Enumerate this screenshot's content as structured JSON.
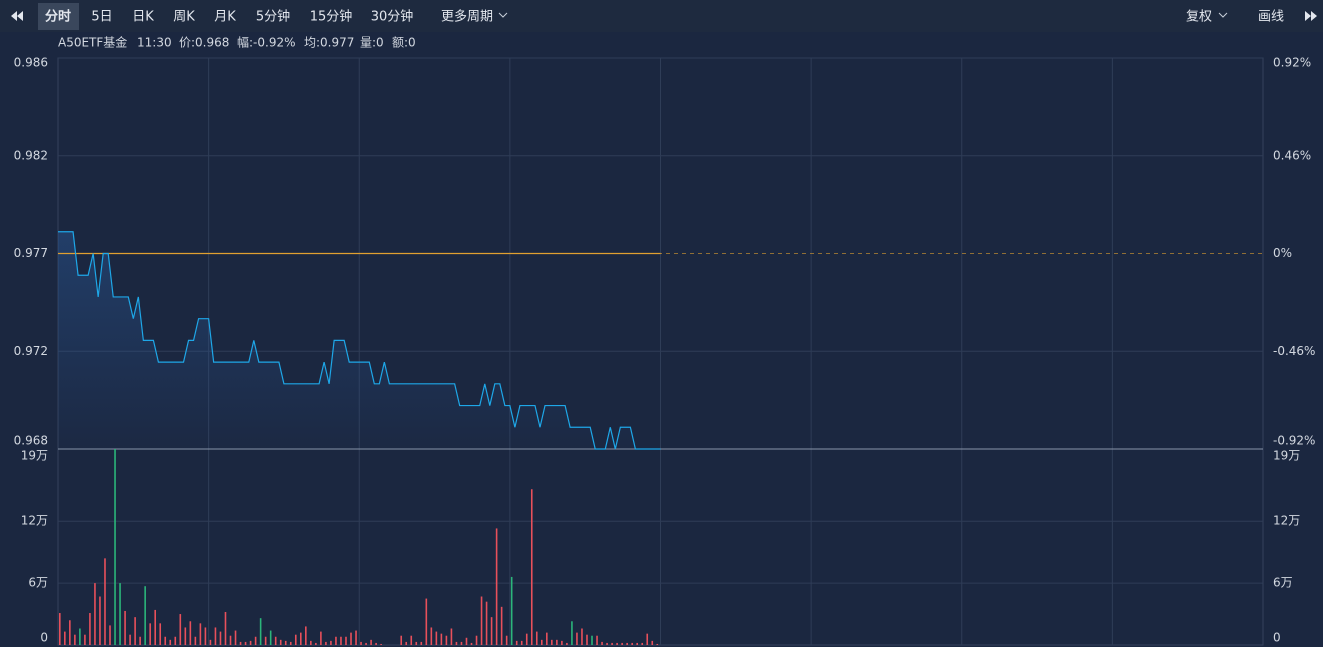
{
  "toolbar": {
    "tabs": [
      "分时",
      "5日",
      "日K",
      "周K",
      "月K",
      "5分钟",
      "15分钟",
      "30分钟",
      "更多周期"
    ],
    "right": [
      "复权",
      "画线"
    ]
  },
  "info": {
    "name": "A50ETF基金",
    "time": "11:30",
    "price": "价:0.968",
    "change": "幅:-0.92%",
    "avg": "均:0.977",
    "volume": "量:0",
    "amount": "额:0"
  },
  "chart_data": {
    "type": "line",
    "price_color": "#1ea7e8",
    "avg_color": "#e0a030",
    "up_color": "#e8505b",
    "down_color": "#2bb57a",
    "ylim": [
      0.968,
      0.986
    ],
    "yticks": [
      {
        "value": 0.986,
        "label": "0.986"
      },
      {
        "value": 0.9815,
        "label": "0.982"
      },
      {
        "value": 0.977,
        "label": "0.977"
      },
      {
        "value": 0.9725,
        "label": "0.972"
      },
      {
        "value": 0.968,
        "label": "0.968"
      }
    ],
    "y2lim": [
      -0.92,
      0.92
    ],
    "y2ticks": [
      {
        "value": 0.92,
        "label": "0.92%"
      },
      {
        "value": 0.46,
        "label": "0.46%"
      },
      {
        "value": 0,
        "label": "0%"
      },
      {
        "value": -0.46,
        "label": "-0.46%"
      },
      {
        "value": -0.92,
        "label": "-0.92%"
      }
    ],
    "price": [
      0.978,
      0.978,
      0.978,
      0.978,
      0.976,
      0.976,
      0.976,
      0.977,
      0.975,
      0.977,
      0.977,
      0.975,
      0.975,
      0.975,
      0.975,
      0.974,
      0.975,
      0.973,
      0.973,
      0.973,
      0.972,
      0.972,
      0.972,
      0.972,
      0.972,
      0.972,
      0.973,
      0.973,
      0.974,
      0.974,
      0.974,
      0.972,
      0.972,
      0.972,
      0.972,
      0.972,
      0.972,
      0.972,
      0.972,
      0.973,
      0.972,
      0.972,
      0.972,
      0.972,
      0.972,
      0.971,
      0.971,
      0.971,
      0.971,
      0.971,
      0.971,
      0.971,
      0.971,
      0.972,
      0.971,
      0.973,
      0.973,
      0.973,
      0.972,
      0.972,
      0.972,
      0.972,
      0.972,
      0.971,
      0.971,
      0.972,
      0.971,
      0.971,
      0.971,
      0.971,
      0.971,
      0.971,
      0.971,
      0.971,
      0.971,
      0.971,
      0.971,
      0.971,
      0.971,
      0.971,
      0.97,
      0.97,
      0.97,
      0.97,
      0.97,
      0.971,
      0.97,
      0.971,
      0.971,
      0.97,
      0.97,
      0.969,
      0.97,
      0.97,
      0.97,
      0.97,
      0.969,
      0.97,
      0.97,
      0.97,
      0.97,
      0.97,
      0.969,
      0.969,
      0.969,
      0.969,
      0.969,
      0.968,
      0.968,
      0.968,
      0.969,
      0.968,
      0.969,
      0.969,
      0.969,
      0.968,
      0.968,
      0.968,
      0.968,
      0.968,
      0.968
    ],
    "avg": [
      0.977,
      0.977,
      0.977,
      0.977,
      0.977,
      0.977,
      0.977,
      0.977,
      0.977,
      0.977,
      0.977,
      0.977,
      0.977,
      0.977,
      0.977,
      0.977,
      0.977,
      0.977,
      0.977,
      0.977,
      0.977,
      0.977,
      0.977,
      0.977,
      0.977,
      0.977,
      0.977,
      0.977,
      0.977,
      0.977,
      0.977,
      0.977,
      0.977,
      0.977,
      0.977,
      0.977,
      0.977,
      0.977,
      0.977,
      0.977,
      0.977,
      0.977,
      0.977,
      0.977,
      0.977,
      0.977,
      0.977,
      0.977,
      0.977,
      0.977,
      0.977,
      0.977,
      0.977,
      0.977,
      0.977,
      0.977,
      0.977,
      0.977,
      0.977,
      0.977,
      0.977,
      0.977,
      0.977,
      0.977,
      0.977,
      0.977,
      0.977,
      0.977,
      0.977,
      0.977,
      0.977,
      0.977,
      0.977,
      0.977,
      0.977,
      0.977,
      0.977,
      0.977,
      0.977,
      0.977,
      0.977,
      0.977,
      0.977,
      0.977,
      0.977,
      0.977,
      0.977,
      0.977,
      0.977,
      0.977,
      0.977,
      0.977,
      0.977,
      0.977,
      0.977,
      0.977,
      0.977,
      0.977,
      0.977,
      0.977,
      0.977,
      0.977,
      0.977,
      0.977,
      0.977,
      0.977,
      0.977,
      0.977,
      0.977,
      0.977,
      0.977,
      0.977,
      0.977,
      0.977,
      0.977,
      0.977,
      0.977,
      0.977,
      0.977,
      0.977,
      0.977
    ],
    "vlim": [
      0,
      190000
    ],
    "vticks": [
      {
        "value": 190000,
        "label": "19万"
      },
      {
        "value": 120000,
        "label": "12万"
      },
      {
        "value": 60000,
        "label": "6万"
      },
      0
    ],
    "volume": [
      31000,
      13000,
      24000,
      10000,
      16000,
      10000,
      31000,
      60000,
      47000,
      84000,
      19000,
      190000,
      60000,
      33000,
      10000,
      27000,
      8000,
      57000,
      21000,
      34000,
      21000,
      8000,
      5000,
      8000,
      30000,
      17000,
      23000,
      8000,
      21000,
      17000,
      5000,
      17000,
      13000,
      32000,
      9000,
      14000,
      3000,
      3000,
      4000,
      8000,
      26000,
      8000,
      14000,
      8000,
      5000,
      4000,
      3000,
      10000,
      12000,
      18000,
      4000,
      2000,
      13000,
      3000,
      4000,
      8000,
      8000,
      8000,
      12000,
      14000,
      3000,
      2000,
      5000,
      2000,
      1000,
      0,
      0,
      0,
      9000,
      3000,
      9000,
      3000,
      3000,
      45000,
      17000,
      13000,
      11000,
      9000,
      16000,
      3000,
      3000,
      7000,
      2000,
      9000,
      47000,
      42000,
      27000,
      113000,
      37000,
      9000,
      66000,
      4000,
      4000,
      11000,
      151000,
      13000,
      5000,
      12000,
      5000,
      5000,
      4000,
      2000,
      23000,
      12000,
      16000,
      10000,
      9000,
      9000,
      3000,
      2000,
      2000,
      2000,
      2000,
      2000,
      2000,
      2000,
      2000,
      11000,
      4000,
      1000,
      0
    ],
    "volume_colors": [
      "#e8505b",
      "#e8505b",
      "#e8505b",
      "#e8505b",
      "#2bb57a",
      "#e8505b",
      "#e8505b",
      "#e8505b",
      "#e8505b",
      "#e8505b",
      "#e8505b",
      "#2bb57a",
      "#2bb57a",
      "#e8505b",
      "#e8505b",
      "#e8505b",
      "#e8505b",
      "#2bb57a",
      "#e8505b",
      "#e8505b",
      "#e8505b",
      "#e8505b",
      "#e8505b",
      "#e8505b",
      "#e8505b",
      "#e8505b",
      "#e8505b",
      "#e8505b",
      "#e8505b",
      "#e8505b",
      "#e8505b",
      "#e8505b",
      "#e8505b",
      "#e8505b",
      "#e8505b",
      "#e8505b",
      "#e8505b",
      "#e8505b",
      "#e8505b",
      "#e8505b",
      "#2bb57a",
      "#e8505b",
      "#2bb57a",
      "#e8505b",
      "#e8505b",
      "#e8505b",
      "#e8505b",
      "#e8505b",
      "#e8505b",
      "#e8505b",
      "#e8505b",
      "#e8505b",
      "#e8505b",
      "#e8505b",
      "#e8505b",
      "#e8505b",
      "#e8505b",
      "#e8505b",
      "#e8505b",
      "#e8505b",
      "#e8505b",
      "#e8505b",
      "#e8505b",
      "#e8505b",
      "#e8505b",
      "#e8505b",
      "#e8505b",
      "#e8505b",
      "#e8505b",
      "#e8505b",
      "#e8505b",
      "#e8505b",
      "#e8505b",
      "#e8505b",
      "#e8505b",
      "#e8505b",
      "#e8505b",
      "#e8505b",
      "#e8505b",
      "#e8505b",
      "#e8505b",
      "#e8505b",
      "#e8505b",
      "#e8505b",
      "#e8505b",
      "#e8505b",
      "#e8505b",
      "#e8505b",
      "#e8505b",
      "#e8505b",
      "#2bb57a",
      "#e8505b",
      "#e8505b",
      "#e8505b",
      "#e8505b",
      "#e8505b",
      "#e8505b",
      "#e8505b",
      "#e8505b",
      "#e8505b",
      "#e8505b",
      "#e8505b",
      "#2bb57a",
      "#e8505b",
      "#e8505b",
      "#e8505b",
      "#2bb57a",
      "#e8505b",
      "#e8505b",
      "#e8505b",
      "#e8505b",
      "#e8505b",
      "#e8505b",
      "#e8505b",
      "#e8505b",
      "#e8505b",
      "#e8505b",
      "#e8505b",
      "#e8505b",
      "#e8505b",
      "#e8505b"
    ]
  }
}
